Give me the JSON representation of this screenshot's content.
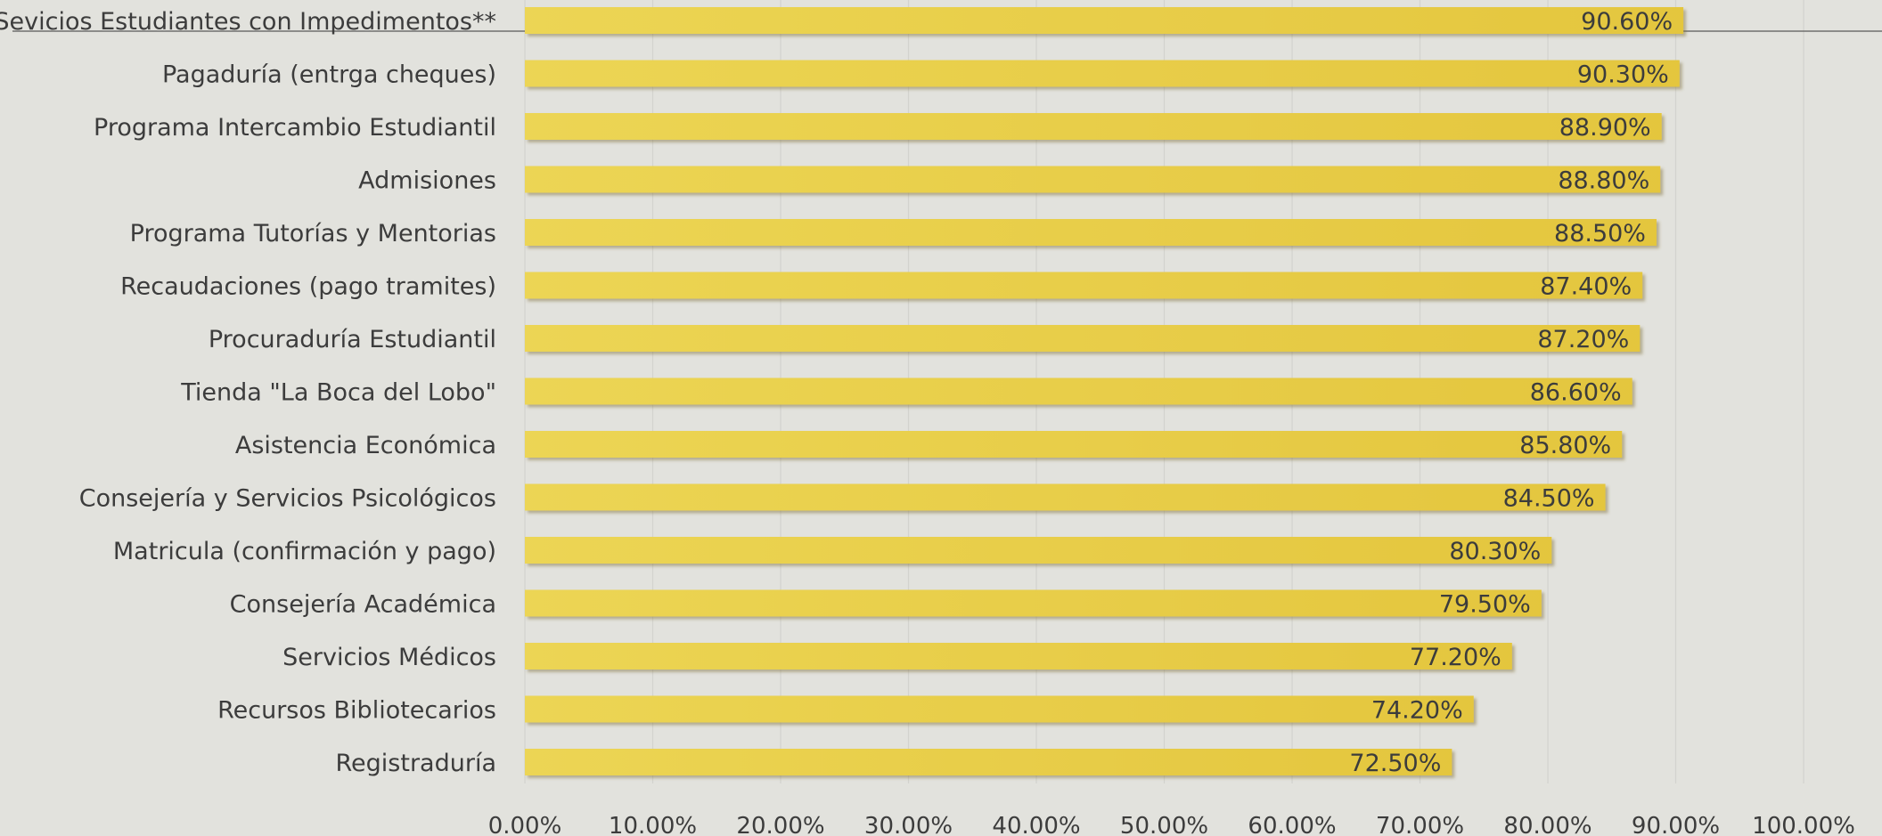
{
  "chart_data": {
    "type": "bar",
    "orientation": "horizontal",
    "categories": [
      "Sevicios Estudiantes con Impedimentos**",
      "Pagaduría (entrga cheques)",
      "Programa Intercambio Estudiantil",
      "Admisiones",
      "Programa Tutorías y Mentorias",
      "Recaudaciones (pago tramites)",
      "Procuraduría Estudiantil",
      "Tienda \"La Boca del Lobo\"",
      "Asistencia Económica",
      "Consejería y Servicios Psicológicos",
      "Matricula (confirmación y pago)",
      "Consejería Académica",
      "Servicios Médicos",
      "Recursos Bibliotecarios",
      "Registraduría"
    ],
    "values": [
      90.6,
      90.3,
      88.9,
      88.8,
      88.5,
      87.4,
      87.2,
      86.6,
      85.8,
      84.5,
      80.3,
      79.5,
      77.2,
      74.2,
      72.5
    ],
    "value_labels": [
      "90.60%",
      "90.30%",
      "88.90%",
      "88.80%",
      "88.50%",
      "87.40%",
      "87.20%",
      "86.60%",
      "85.80%",
      "84.50%",
      "80.30%",
      "79.50%",
      "77.20%",
      "74.20%",
      "72.50%"
    ],
    "x_ticks": [
      "0.00%",
      "10.00%",
      "20.00%",
      "30.00%",
      "40.00%",
      "50.00%",
      "60.00%",
      "70.00%",
      "80.00%",
      "90.00%",
      "100.00%"
    ],
    "xlim": [
      0,
      100
    ],
    "grid": true,
    "legend": "none",
    "bar_color": "#e8cc48",
    "background_color": "#e2e2dd",
    "text_color": "#3c3c3c"
  }
}
